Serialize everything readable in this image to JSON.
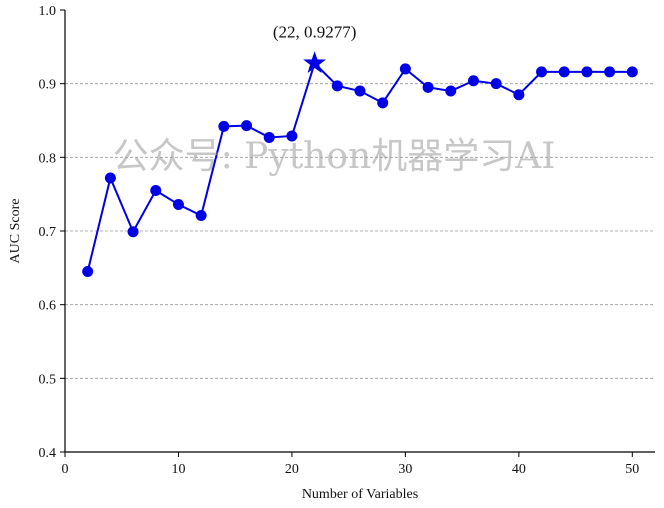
{
  "chart_data": {
    "type": "line",
    "xlabel": "Number of Variables",
    "ylabel": "AUC Score",
    "xlim": [
      0,
      52
    ],
    "ylim": [
      0.4,
      1.0
    ],
    "xticks": [
      0,
      10,
      20,
      30,
      40,
      50
    ],
    "yticks": [
      0.4,
      0.5,
      0.6,
      0.7,
      0.8,
      0.9,
      1.0
    ],
    "grid": "horizontal dashed",
    "line_color": "#0000e6",
    "series": [
      {
        "x": [
          2,
          4,
          6,
          8,
          10,
          12,
          14,
          16,
          18,
          20,
          22,
          24,
          26,
          28,
          30,
          32,
          34,
          36,
          38,
          40,
          42,
          44,
          46,
          48,
          50
        ],
        "y": [
          0.645,
          0.772,
          0.699,
          0.755,
          0.736,
          0.721,
          0.842,
          0.843,
          0.827,
          0.829,
          0.9277,
          0.897,
          0.89,
          0.874,
          0.92,
          0.895,
          0.89,
          0.904,
          0.9,
          0.885,
          0.916,
          0.916,
          0.916,
          0.916,
          0.916
        ]
      }
    ],
    "best_point": {
      "x": 22,
      "y": 0.9277
    },
    "annotation": "(22, 0.9277)"
  },
  "watermark": "公众号: Python机器学习AI"
}
